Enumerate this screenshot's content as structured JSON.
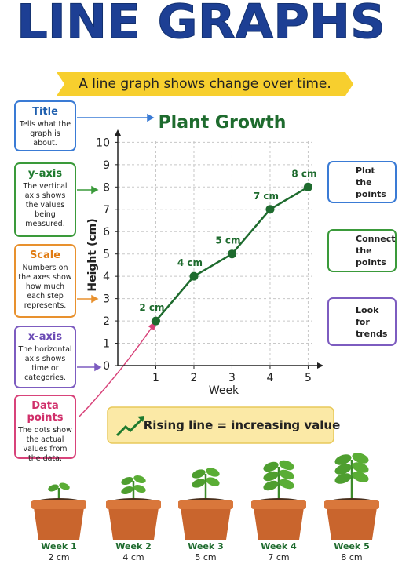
{
  "header": {
    "title": "LINE GRAPHS",
    "subtitle": "A line graph shows change over time."
  },
  "callouts": [
    {
      "title": "Title",
      "text": "Tells what the graph is about."
    },
    {
      "title": "y-axis",
      "text": "The vertical axis shows the values being measured."
    },
    {
      "title": "Scale",
      "text": "Numbers on the axes show how much each step represents."
    },
    {
      "title": "x-axis",
      "text": "The horizontal axis shows time or categories."
    },
    {
      "title": "Data points",
      "text": "The dots show the actual values from the data."
    }
  ],
  "chart_data": {
    "type": "line",
    "title": "Plant Growth",
    "x_label": "Week",
    "y_label": "Height (cm)",
    "x": [
      1,
      2,
      3,
      4,
      5
    ],
    "values": [
      2,
      4,
      5,
      7,
      8
    ],
    "value_labels": [
      "2 cm",
      "4 cm",
      "5 cm",
      "7 cm",
      "8 cm"
    ],
    "color": "#1e6b2e",
    "xlim": [
      0,
      5.3
    ],
    "ylim": [
      0,
      10.4
    ],
    "xticks": [
      1,
      2,
      3,
      4,
      5
    ],
    "yticks": [
      0,
      1,
      2,
      3,
      4,
      5,
      6,
      7,
      8,
      9,
      10
    ],
    "grid": true
  },
  "tips": [
    "Plot the points",
    "Connect the points",
    "Look for trends"
  ],
  "banner": "Rising line = increasing value",
  "plants": [
    {
      "week": "Week 1",
      "height": "2 cm"
    },
    {
      "week": "Week 2",
      "height": "4 cm"
    },
    {
      "week": "Week 3",
      "height": "5 cm"
    },
    {
      "week": "Week 4",
      "height": "7 cm"
    },
    {
      "week": "Week 5",
      "height": "8 cm"
    }
  ]
}
